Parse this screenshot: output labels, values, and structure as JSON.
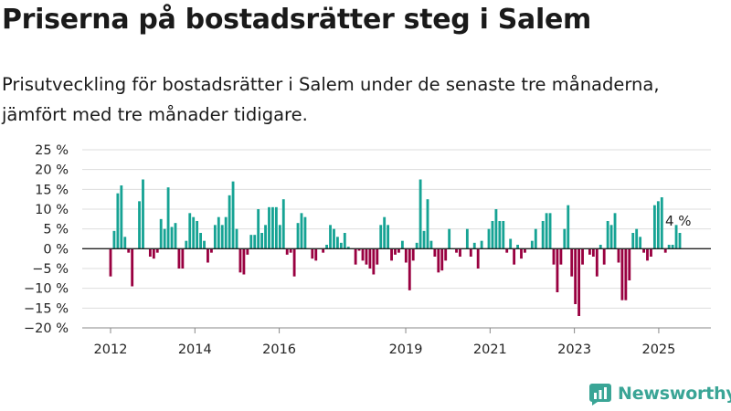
{
  "title": "Priserna på bostadsrätter steg i Salem",
  "subtitle": "Prisutveckling för bostadsrätter i Salem under de senaste tre månaderna, jämfört med tre månader tidigare.",
  "brand": "Newsworthy",
  "colors": {
    "positive": "#16a394",
    "negative": "#990040",
    "brand": "#3aa596",
    "grid": "#dddddd"
  },
  "chart_data": {
    "type": "bar",
    "ylim": [
      -20,
      25
    ],
    "yticks": [
      -20,
      -15,
      -10,
      -5,
      0,
      5,
      10,
      15,
      20,
      25
    ],
    "ytick_labels": [
      "−20 %",
      "−15 %",
      "−10 %",
      "−5 %",
      "0 %",
      "5 %",
      "10 %",
      "15 %",
      "20 %",
      "25 %"
    ],
    "xticks": [
      {
        "year": 2012,
        "label": "2012"
      },
      {
        "year": 2014,
        "label": "2014"
      },
      {
        "year": 2016,
        "label": "2016"
      },
      {
        "year": 2019,
        "label": "2019"
      },
      {
        "year": 2021,
        "label": "2021"
      },
      {
        "year": 2023,
        "label": "2023"
      },
      {
        "year": 2025,
        "label": "2025"
      }
    ],
    "start": "2012-01",
    "end": "2025-06",
    "values": [
      -7,
      4.5,
      14,
      16,
      3,
      -1,
      -9.5,
      0,
      12,
      17.5,
      0,
      -2,
      -2.5,
      -1,
      7.5,
      5,
      15.5,
      5.5,
      6.5,
      -5,
      -5,
      2,
      9,
      8,
      7,
      4,
      2,
      -3.5,
      -1,
      6,
      8,
      6,
      8,
      13.5,
      17,
      5,
      -6,
      -6.5,
      -1.5,
      3.5,
      3.5,
      10,
      4,
      6,
      10.5,
      10.5,
      10.5,
      6,
      12.5,
      -1.5,
      -1,
      -7,
      6.5,
      9,
      8,
      0,
      -2.5,
      -3,
      0,
      -1,
      1,
      6,
      5,
      3,
      1.5,
      4,
      0.5,
      0,
      -4,
      -0.5,
      -3,
      -4,
      -5,
      -6.5,
      -4,
      6,
      8,
      6,
      -3,
      -1.5,
      -1,
      2,
      -3.5,
      -10.5,
      -3,
      1.5,
      17.5,
      4.5,
      12.5,
      2,
      -2,
      -6,
      -5.5,
      -3,
      5,
      0,
      -1,
      -2,
      0,
      5,
      -2,
      1.5,
      -5,
      2,
      0,
      5,
      7,
      10,
      7,
      7,
      -1,
      2.5,
      -4,
      1,
      -2.5,
      -1,
      0,
      2,
      5,
      0,
      7,
      9,
      9,
      -4,
      -11,
      -4,
      5,
      11,
      -7,
      -14,
      -17,
      -4,
      0,
      -1.5,
      -2,
      -7,
      1,
      -4,
      7,
      6,
      9,
      -3.5,
      -13,
      -13,
      -8,
      4,
      5,
      3,
      -1,
      -3,
      -2,
      11,
      12,
      13,
      -1,
      1,
      1,
      6,
      4
    ],
    "annotation": {
      "text": "4 %",
      "value": 4
    }
  }
}
